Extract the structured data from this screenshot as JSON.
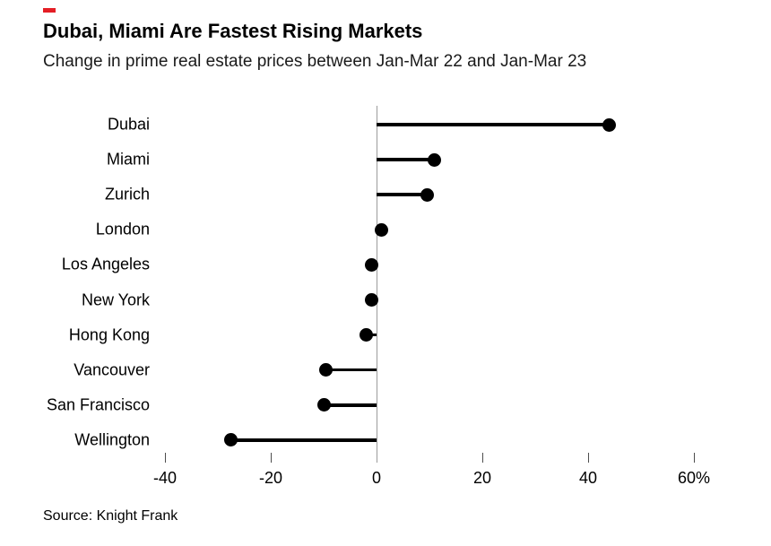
{
  "chart_data": {
    "type": "bar",
    "variant": "horizontal-lollipop",
    "title": "Dubai, Miami Are Fastest Rising Markets",
    "subtitle": "Change in prime real estate prices between Jan-Mar 22 and Jan-Mar 23",
    "source_note": "Source: Knight Frank",
    "categories": [
      "Dubai",
      "Miami",
      "Zurich",
      "London",
      "Los Angeles",
      "New York",
      "Hong Kong",
      "Vancouver",
      "San Francisco",
      "Wellington"
    ],
    "values": [
      44,
      11,
      9.5,
      1,
      -1,
      -1,
      -2,
      -9.5,
      -10,
      -27.5
    ],
    "unit": "%",
    "xlabel": "",
    "ylabel": "",
    "xlim": [
      -44,
      64
    ],
    "x_ticks": [
      -40,
      -20,
      0,
      20,
      40,
      60
    ],
    "x_tick_labels": [
      "-40",
      "-20",
      "0",
      "20",
      "40",
      "60%"
    ],
    "grid": "none",
    "legend": "none"
  },
  "colors": {
    "accent_red": "#e41e25",
    "marker": "#000000",
    "axis_line": "#9b9b9b",
    "tick_mark": "#4d4d4d",
    "text": "#000000",
    "background": "#ffffff"
  }
}
